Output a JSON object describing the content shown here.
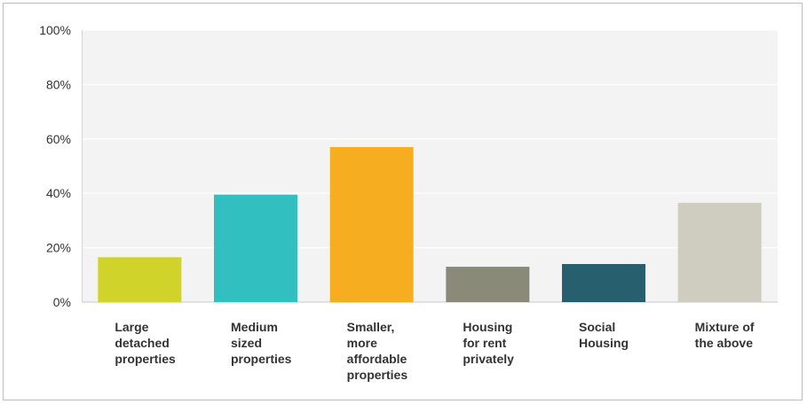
{
  "chart_data": {
    "type": "bar",
    "categories": [
      [
        "Large",
        "detached",
        "properties"
      ],
      [
        "Medium",
        "sized",
        "properties"
      ],
      [
        "Smaller,",
        "more",
        "affordable",
        "properties"
      ],
      [
        "Housing",
        "for rent",
        "privately"
      ],
      [
        "Social",
        "Housing"
      ],
      [
        "Mixture of",
        "the above"
      ]
    ],
    "values": [
      16.5,
      39.5,
      57.0,
      13.0,
      14.0,
      36.5
    ],
    "colors": [
      "#d0d42a",
      "#31bfc0",
      "#f6ae20",
      "#8a8a78",
      "#275f6e",
      "#cfcdc0"
    ],
    "ylim": [
      0,
      100
    ],
    "yticks": [
      0,
      20,
      40,
      60,
      80,
      100
    ],
    "ytick_labels": [
      "0%",
      "20%",
      "40%",
      "60%",
      "80%",
      "100%"
    ],
    "grid": true,
    "title": "",
    "xlabel": "",
    "ylabel": ""
  }
}
